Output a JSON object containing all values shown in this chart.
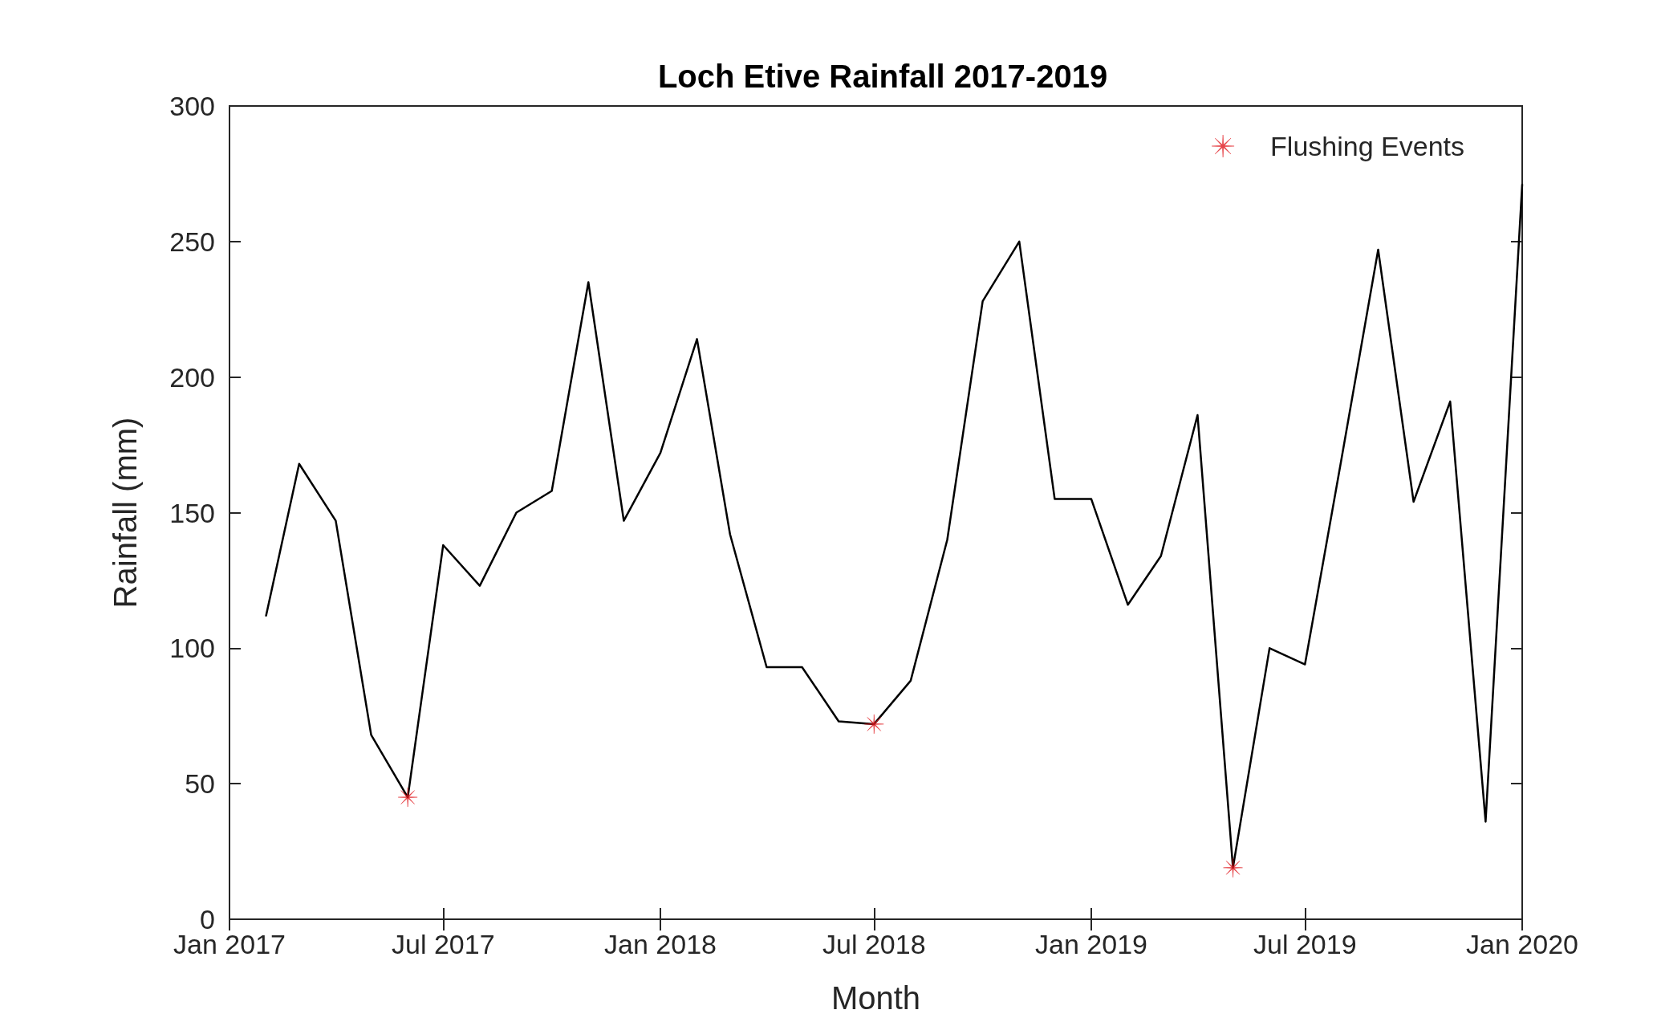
{
  "chart_data": {
    "type": "line",
    "title": "Loch Etive Rainfall 2017-2019",
    "xlabel": "Month",
    "ylabel": "Rainfall (mm)",
    "x": [
      "2017-02",
      "2017-03",
      "2017-04",
      "2017-05",
      "2017-06",
      "2017-07",
      "2017-08",
      "2017-09",
      "2017-10",
      "2017-11",
      "2017-12",
      "2018-01",
      "2018-02",
      "2018-03",
      "2018-04",
      "2018-05",
      "2018-06",
      "2018-07",
      "2018-08",
      "2018-09",
      "2018-10",
      "2018-11",
      "2018-12",
      "2019-01",
      "2019-02",
      "2019-03",
      "2019-04",
      "2019-05",
      "2019-06",
      "2019-07",
      "2019-08",
      "2019-09",
      "2019-10",
      "2019-11",
      "2019-12",
      "2020-01"
    ],
    "series": [
      {
        "color": "#000000",
        "marker": "none",
        "line_style": "solid",
        "values": [
          112,
          168,
          147,
          68,
          45,
          138,
          123,
          150,
          158,
          235,
          147,
          172,
          214,
          142,
          93,
          93,
          73,
          72,
          88,
          140,
          228,
          250,
          155,
          155,
          116,
          134,
          186,
          19,
          100,
          94,
          170,
          247,
          154,
          191,
          36,
          271
        ]
      },
      {
        "type": "scatter",
        "name": "Flushing Events",
        "color": "#e0191f",
        "marker": "cross",
        "x": [
          "2017-06",
          "2018-07",
          "2019-05"
        ],
        "values": [
          45,
          72,
          19
        ]
      }
    ],
    "xlim": [
      "2017-01",
      "2020-01"
    ],
    "xticks": [
      {
        "value": "2017-01",
        "label": "Jan 2017"
      },
      {
        "value": "2017-07",
        "label": "Jul 2017"
      },
      {
        "value": "2018-01",
        "label": "Jan 2018"
      },
      {
        "value": "2018-07",
        "label": "Jul 2018"
      },
      {
        "value": "2019-01",
        "label": "Jan 2019"
      },
      {
        "value": "2019-07",
        "label": "Jul 2019"
      },
      {
        "value": "2020-01",
        "label": "Jan 2020"
      }
    ],
    "ylim": [
      0,
      300
    ],
    "yticks": [
      0,
      50,
      100,
      150,
      200,
      250,
      300
    ],
    "grid": false,
    "legend": "top right"
  }
}
